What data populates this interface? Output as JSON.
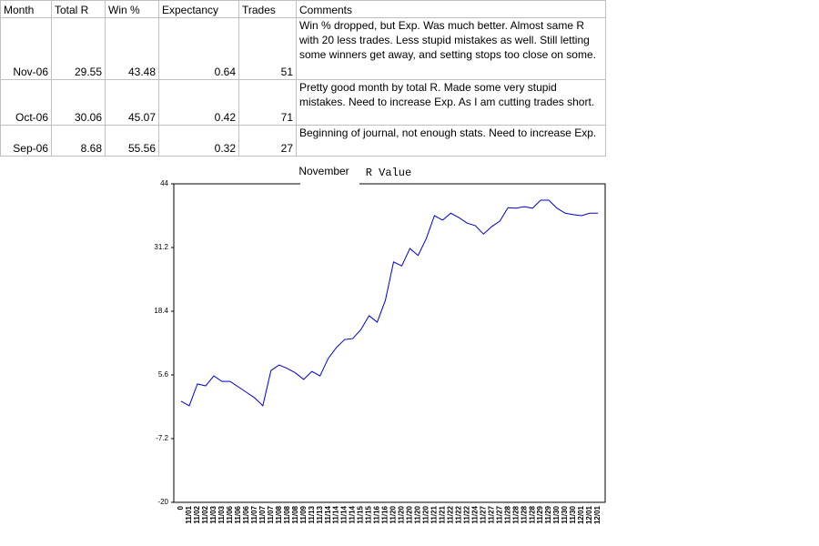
{
  "table": {
    "header": [
      "Month",
      "Total R",
      "Win %",
      "Expectancy",
      "Trades",
      "Comments"
    ],
    "rows": [
      [
        "Nov-06",
        29.55,
        43.48,
        0.64,
        51,
        "Win % dropped, but Exp. Was much better. Almost same R with 20 less trades. Less stupid mistakes as well. Still letting some winners get away, and setting stops too close on some."
      ],
      [
        "Oct-06",
        30.06,
        45.07,
        0.42,
        71,
        "Pretty good month by total R. Made some very stupid mistakes. Need to increase Exp. As I am cutting trades short."
      ],
      [
        "Sep-06",
        8.68,
        55.56,
        0.32,
        27,
        "Beginning of journal,  not enough stats. Need to increase Exp."
      ]
    ]
  },
  "chart_data": {
    "type": "line",
    "title": "R Value",
    "categories": [
      "0",
      "11/01",
      "11/02",
      "11/02",
      "11/03",
      "11/03",
      "11/06",
      "11/06",
      "11/06",
      "11/07",
      "11/07",
      "11/07",
      "11/08",
      "11/08",
      "11/08",
      "11/09",
      "11/13",
      "11/13",
      "11/14",
      "11/14",
      "11/14",
      "11/14",
      "11/15",
      "11/15",
      "11/16",
      "11/16",
      "11/20",
      "11/20",
      "11/20",
      "11/20",
      "11/20",
      "11/21",
      "11/21",
      "11/22",
      "11/22",
      "11/22",
      "11/24",
      "11/27",
      "11/27",
      "11/27",
      "11/28",
      "11/28",
      "11/28",
      "11/28",
      "11/29",
      "11/29",
      "11/30",
      "11/30",
      "11/30",
      "12/01",
      "12/01",
      "12/01"
    ],
    "series": [
      {
        "name": "November",
        "color": "#0000cc",
        "values": [
          0.3,
          -0.6,
          3.8,
          3.4,
          5.4,
          4.3,
          4.3,
          3.2,
          2.1,
          1.0,
          -0.6,
          6.5,
          7.6,
          6.9,
          6.0,
          4.7,
          6.3,
          5.4,
          8.9,
          11.1,
          12.7,
          12.9,
          14.7,
          17.5,
          16.2,
          20.6,
          28.3,
          27.5,
          31.0,
          29.6,
          33.0,
          37.6,
          36.7,
          38.1,
          37.2,
          36.1,
          35.6,
          33.9,
          35.4,
          36.5,
          39.2,
          39.1,
          39.4,
          39.1,
          40.7,
          40.7,
          39.1,
          38.1,
          37.8,
          37.6,
          38.1,
          38.1
        ]
      }
    ],
    "ylim": [
      -20,
      44
    ],
    "yticks": [
      44,
      31.2,
      18.4,
      5.6,
      -7.2,
      -20
    ],
    "grid": false
  }
}
